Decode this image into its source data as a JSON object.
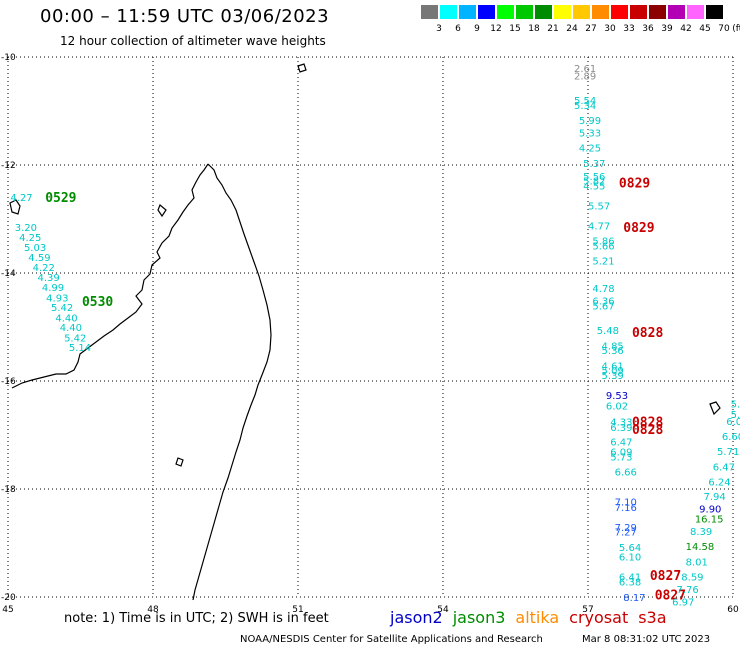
{
  "header": {
    "title": "00:00 – 11:59 UTC 03/06/2023",
    "subtitle": "12 hour collection of altimeter wave heights"
  },
  "color_scale": {
    "unit_label": "(ft)",
    "steps": [
      {
        "label": "3",
        "color": "#777777"
      },
      {
        "label": "6",
        "color": "#00ffff"
      },
      {
        "label": "9",
        "color": "#00b4ff"
      },
      {
        "label": "12",
        "color": "#0000ff"
      },
      {
        "label": "15",
        "color": "#00ff00"
      },
      {
        "label": "18",
        "color": "#00c800"
      },
      {
        "label": "21",
        "color": "#008c00"
      },
      {
        "label": "24",
        "color": "#ffff00"
      },
      {
        "label": "27",
        "color": "#ffc800"
      },
      {
        "label": "30",
        "color": "#ff8c00"
      },
      {
        "label": "33",
        "color": "#ff0000"
      },
      {
        "label": "36",
        "color": "#c80000"
      },
      {
        "label": "39",
        "color": "#8c0000"
      },
      {
        "label": "42",
        "color": "#b400b4"
      },
      {
        "label": "45",
        "color": "#ff64ff"
      },
      {
        "label": "70",
        "color": "#000000"
      }
    ]
  },
  "map": {
    "lon_range": [
      45,
      60
    ],
    "lat_range": [
      -20,
      -10
    ],
    "x_ticks": [
      "45",
      "48",
      "51",
      "54",
      "57",
      "60"
    ],
    "y_ticks": [
      "-10",
      "-12",
      "-14",
      "-16",
      "-18",
      "-20"
    ],
    "grid": true
  },
  "colors": {
    "jason2": "#0000c8",
    "jason3": "#008c00",
    "altika": "#ff8c00",
    "cryosat": "#c80000",
    "s3a": "#c80000",
    "wave_cyan": "#00c8c8",
    "wave_blue": "#1e5aff",
    "wave_gray": "#8c8c8c"
  },
  "pass_labels": [
    {
      "text": "0529",
      "lon": 45.77,
      "lat": -12.59,
      "sat": "jason3"
    },
    {
      "text": "0530",
      "lon": 46.53,
      "lat": -14.52,
      "sat": "jason3"
    },
    {
      "text": "0829",
      "lon": 57.64,
      "lat": -12.32,
      "sat": "cryosat"
    },
    {
      "text": "0829",
      "lon": 57.73,
      "lat": -13.15,
      "sat": "cryosat"
    },
    {
      "text": "0828",
      "lon": 57.91,
      "lat": -15.09,
      "sat": "cryosat"
    },
    {
      "text": "0828",
      "lon": 57.91,
      "lat": -16.75,
      "sat": "cryosat"
    },
    {
      "text": "0828",
      "lon": 57.91,
      "lat": -16.89,
      "sat": "cryosat"
    },
    {
      "text": "0827",
      "lon": 58.28,
      "lat": -19.59,
      "sat": "cryosat"
    },
    {
      "text": "0827",
      "lon": 58.38,
      "lat": -19.95,
      "sat": "cryosat"
    }
  ],
  "wave_points": [
    {
      "v": "2.61",
      "lon": 56.71,
      "lat": -10.2,
      "c": "wave_gray"
    },
    {
      "v": "2.89",
      "lon": 56.71,
      "lat": -10.34,
      "c": "wave_gray"
    },
    {
      "v": "5.54",
      "lon": 56.71,
      "lat": -10.8,
      "c": "wave_cyan"
    },
    {
      "v": "5.34",
      "lon": 56.71,
      "lat": -10.89,
      "c": "wave_cyan"
    },
    {
      "v": "5.99",
      "lon": 56.81,
      "lat": -11.17,
      "c": "wave_cyan"
    },
    {
      "v": "5.33",
      "lon": 56.81,
      "lat": -11.4,
      "c": "wave_cyan"
    },
    {
      "v": "4.25",
      "lon": 56.81,
      "lat": -11.68,
      "c": "wave_cyan"
    },
    {
      "v": "5.37",
      "lon": 56.9,
      "lat": -11.96,
      "c": "wave_cyan"
    },
    {
      "v": "5.56",
      "lon": 56.9,
      "lat": -12.2,
      "c": "wave_cyan"
    },
    {
      "v": "5.82",
      "lon": 56.9,
      "lat": -12.29,
      "c": "wave_cyan"
    },
    {
      "v": "4.55",
      "lon": 56.9,
      "lat": -12.38,
      "c": "wave_cyan"
    },
    {
      "v": "5.57",
      "lon": 57.0,
      "lat": -12.75,
      "c": "wave_cyan"
    },
    {
      "v": "4.77",
      "lon": 57.0,
      "lat": -13.12,
      "c": "wave_cyan"
    },
    {
      "v": "5.86",
      "lon": 57.09,
      "lat": -13.4,
      "c": "wave_cyan"
    },
    {
      "v": "5.66",
      "lon": 57.09,
      "lat": -13.49,
      "c": "wave_cyan"
    },
    {
      "v": "5.21",
      "lon": 57.09,
      "lat": -13.77,
      "c": "wave_cyan"
    },
    {
      "v": "4.78",
      "lon": 57.09,
      "lat": -14.28,
      "c": "wave_cyan"
    },
    {
      "v": "6.36",
      "lon": 57.09,
      "lat": -14.51,
      "c": "wave_cyan"
    },
    {
      "v": "5.67",
      "lon": 57.09,
      "lat": -14.6,
      "c": "wave_cyan"
    },
    {
      "v": "5.48",
      "lon": 57.18,
      "lat": -15.06,
      "c": "wave_cyan"
    },
    {
      "v": "4.85",
      "lon": 57.28,
      "lat": -15.34,
      "c": "wave_cyan"
    },
    {
      "v": "5.36",
      "lon": 57.28,
      "lat": -15.43,
      "c": "wave_cyan"
    },
    {
      "v": "4.61",
      "lon": 57.28,
      "lat": -15.71,
      "c": "wave_cyan"
    },
    {
      "v": "5.09",
      "lon": 57.28,
      "lat": -15.8,
      "c": "wave_cyan"
    },
    {
      "v": "5.39",
      "lon": 57.28,
      "lat": -15.89,
      "c": "wave_cyan"
    },
    {
      "v": "9.53",
      "lon": 57.37,
      "lat": -16.26,
      "c": "jason2"
    },
    {
      "v": "6.02",
      "lon": 57.37,
      "lat": -16.45,
      "c": "wave_cyan"
    },
    {
      "v": "4.33",
      "lon": 57.46,
      "lat": -16.75,
      "c": "wave_cyan"
    },
    {
      "v": "6.39",
      "lon": 57.46,
      "lat": -16.85,
      "c": "wave_cyan"
    },
    {
      "v": "6.47",
      "lon": 57.46,
      "lat": -17.12,
      "c": "wave_cyan"
    },
    {
      "v": "6.09",
      "lon": 57.46,
      "lat": -17.31,
      "c": "wave_cyan"
    },
    {
      "v": "5.73",
      "lon": 57.46,
      "lat": -17.4,
      "c": "wave_cyan"
    },
    {
      "v": "6.66",
      "lon": 57.55,
      "lat": -17.68,
      "c": "wave_cyan"
    },
    {
      "v": "7.10",
      "lon": 57.55,
      "lat": -18.23,
      "c": "wave_blue"
    },
    {
      "v": "7.16",
      "lon": 57.55,
      "lat": -18.33,
      "c": "wave_blue"
    },
    {
      "v": "7.29",
      "lon": 57.55,
      "lat": -18.7,
      "c": "wave_blue"
    },
    {
      "v": "7.27",
      "lon": 57.55,
      "lat": -18.79,
      "c": "wave_blue"
    },
    {
      "v": "5.64",
      "lon": 57.64,
      "lat": -19.07,
      "c": "wave_cyan"
    },
    {
      "v": "6.10",
      "lon": 57.64,
      "lat": -19.25,
      "c": "wave_cyan"
    },
    {
      "v": "6.41",
      "lon": 57.64,
      "lat": -19.62,
      "c": "wave_cyan"
    },
    {
      "v": "6.38",
      "lon": 57.64,
      "lat": -19.71,
      "c": "wave_cyan"
    },
    {
      "v": "8.17",
      "lon": 57.73,
      "lat": -20.0,
      "c": "wave_blue"
    },
    {
      "v": "5.83",
      "lon": 59.95,
      "lat": -16.42,
      "c": "wave_cyan"
    },
    {
      "v": "5.79",
      "lon": 59.95,
      "lat": -16.61,
      "c": "wave_cyan"
    },
    {
      "v": "6.09",
      "lon": 59.86,
      "lat": -16.74,
      "c": "wave_cyan"
    },
    {
      "v": "6.60",
      "lon": 59.77,
      "lat": -17.02,
      "c": "wave_cyan"
    },
    {
      "v": "5.71",
      "lon": 59.67,
      "lat": -17.3,
      "c": "wave_cyan"
    },
    {
      "v": "6.47",
      "lon": 59.58,
      "lat": -17.58,
      "c": "wave_cyan"
    },
    {
      "v": "6.24",
      "lon": 59.49,
      "lat": -17.86,
      "c": "wave_cyan"
    },
    {
      "v": "7.94",
      "lon": 59.39,
      "lat": -18.13,
      "c": "wave_cyan"
    },
    {
      "v": "9.90",
      "lon": 59.3,
      "lat": -18.36,
      "c": "jason2"
    },
    {
      "v": "16.15",
      "lon": 59.21,
      "lat": -18.55,
      "c": "jason3"
    },
    {
      "v": "8.39",
      "lon": 59.11,
      "lat": -18.78,
      "c": "wave_cyan"
    },
    {
      "v": "14.58",
      "lon": 59.02,
      "lat": -19.06,
      "c": "jason3"
    },
    {
      "v": "8.01",
      "lon": 59.02,
      "lat": -19.34,
      "c": "wave_cyan"
    },
    {
      "v": "8.59",
      "lon": 58.93,
      "lat": -19.62,
      "c": "wave_cyan"
    },
    {
      "v": "7.76",
      "lon": 58.83,
      "lat": -19.85,
      "c": "wave_cyan"
    },
    {
      "v": "6.97",
      "lon": 58.74,
      "lat": -20.08,
      "c": "wave_cyan"
    },
    {
      "v": "4.27",
      "lon": 45.05,
      "lat": -12.59,
      "c": "wave_cyan"
    },
    {
      "v": "3.20",
      "lon": 45.14,
      "lat": -13.15,
      "c": "wave_cyan"
    },
    {
      "v": "4.25",
      "lon": 45.23,
      "lat": -13.33,
      "c": "wave_cyan"
    },
    {
      "v": "5.03",
      "lon": 45.33,
      "lat": -13.52,
      "c": "wave_cyan"
    },
    {
      "v": "4.59",
      "lon": 45.42,
      "lat": -13.7,
      "c": "wave_cyan"
    },
    {
      "v": "4.22",
      "lon": 45.51,
      "lat": -13.89,
      "c": "wave_cyan"
    },
    {
      "v": "4.39",
      "lon": 45.61,
      "lat": -14.07,
      "c": "wave_cyan"
    },
    {
      "v": "4.99",
      "lon": 45.7,
      "lat": -14.26,
      "c": "wave_cyan"
    },
    {
      "v": "4.93",
      "lon": 45.79,
      "lat": -14.45,
      "c": "wave_cyan"
    },
    {
      "v": "5.42",
      "lon": 45.89,
      "lat": -14.63,
      "c": "wave_cyan"
    },
    {
      "v": "4.40",
      "lon": 45.98,
      "lat": -14.82,
      "c": "wave_cyan"
    },
    {
      "v": "4.40",
      "lon": 46.07,
      "lat": -15.0,
      "c": "wave_cyan"
    },
    {
      "v": "5.42",
      "lon": 46.16,
      "lat": -15.19,
      "c": "wave_cyan"
    },
    {
      "v": "5.14",
      "lon": 46.26,
      "lat": -15.37,
      "c": "wave_cyan"
    }
  ],
  "footer": {
    "note": "note: 1) Time is in UTC; 2) SWH is in feet",
    "legend": [
      {
        "label": "jason2",
        "sat": "jason2"
      },
      {
        "label": "jason3",
        "sat": "jason3"
      },
      {
        "label": "altika",
        "sat": "altika"
      },
      {
        "label": "cryosat",
        "sat": "cryosat"
      },
      {
        "label": "s3a",
        "sat": "s3a"
      }
    ],
    "credit": "NOAA/NESDIS Center for Satellite Applications and Research",
    "stamp": "Mar  8 08:31:02 UTC 2023"
  }
}
